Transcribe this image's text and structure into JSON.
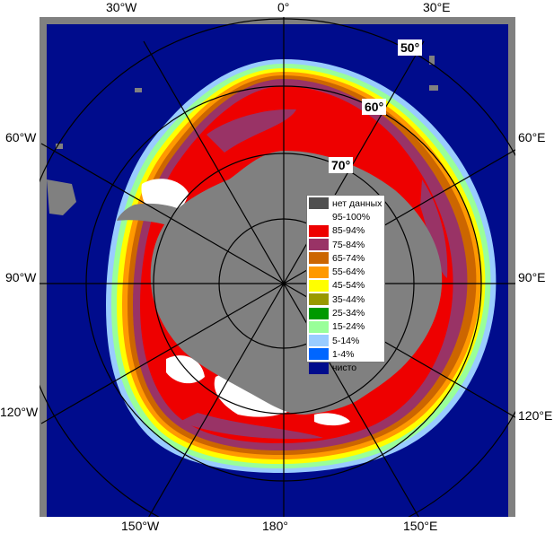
{
  "map": {
    "colors": {
      "ocean": "#000c8c",
      "land": "#808080",
      "frame": "#808080",
      "ice_95_100": "#ffffff",
      "ice_85_94": "#ee0000",
      "ice_75_84": "#993366",
      "ice_65_74": "#cc6600",
      "ice_55_64": "#ff9900",
      "ice_45_54": "#ffff00",
      "ice_35_44": "#999900",
      "ice_25_34": "#009900",
      "ice_15_24": "#99ff99",
      "ice_5_14": "#99ccff",
      "ice_1_4": "#0066ff",
      "no_data": "#505050"
    }
  },
  "longitude_labels": {
    "lon_30w_top": "30°W",
    "lon_0_top": "0°",
    "lon_30e_top": "30°E",
    "lon_60w": "60°W",
    "lon_60e": "60°E",
    "lon_90w": "90°W",
    "lon_90e": "90°E",
    "lon_120w": "120°W",
    "lon_120e": "120°E",
    "lon_150w": "150°W",
    "lon_180": "180°",
    "lon_150e": "150°E"
  },
  "latitude_labels": {
    "lat_50": "50°",
    "lat_60": "60°",
    "lat_70": "70°"
  },
  "legend": {
    "items": [
      {
        "label": "нет данных",
        "color": "#505050"
      },
      {
        "label": "95-100%",
        "color": "#ffffff"
      },
      {
        "label": "85-94%",
        "color": "#ee0000"
      },
      {
        "label": "75-84%",
        "color": "#993366"
      },
      {
        "label": "65-74%",
        "color": "#cc6600"
      },
      {
        "label": "55-64%",
        "color": "#ff9900"
      },
      {
        "label": "45-54%",
        "color": "#ffff00"
      },
      {
        "label": "35-44%",
        "color": "#999900"
      },
      {
        "label": "25-34%",
        "color": "#009900"
      },
      {
        "label": "15-24%",
        "color": "#99ff99"
      },
      {
        "label": "5-14%",
        "color": "#99ccff"
      },
      {
        "label": "1-4%",
        "color": "#0066ff"
      },
      {
        "label": "чисто",
        "color": "#000c8c"
      }
    ]
  }
}
